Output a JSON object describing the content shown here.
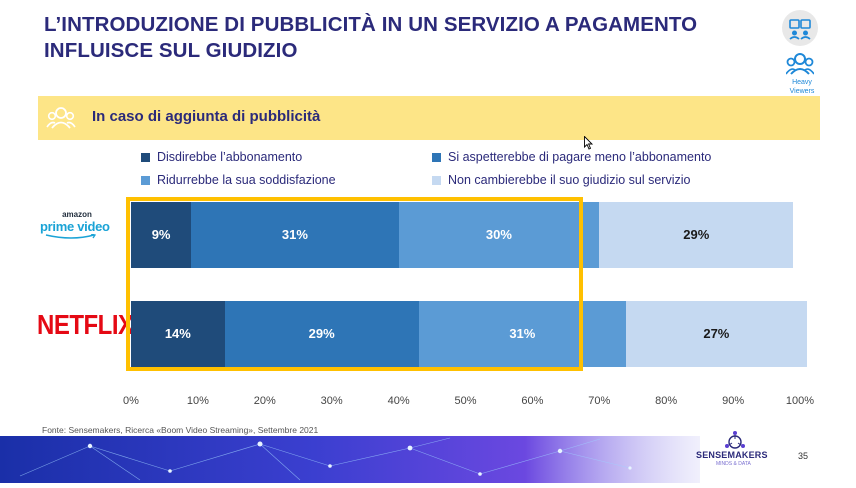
{
  "slide": {
    "title_line1": "L’INTRODUZIONE DI PUBBLICITÀ IN UN SERVIZIO A PAGAMENTO",
    "title_line2": "INFLUISCE SUL GIUDIZIO",
    "band_text": "In caso di aggiunta di pubblicità",
    "heavy_viewers_line1": "Heavy",
    "heavy_viewers_line2": "Viewers",
    "source": "Fonte: Sensemakers, Ricerca «Boom Video Streaming», Settembre 2021",
    "page_number": "35",
    "brand_name": "SENSEMAKERS",
    "brand_tagline": "MINDS & DATA",
    "prime_small": "amazon",
    "prime_big": "prime video",
    "netflix_logo": "NETFLIX"
  },
  "chart_data": {
    "type": "bar",
    "orientation": "horizontal",
    "stacked": true,
    "categories": [
      "Amazon Prime Video",
      "Netflix"
    ],
    "series": [
      {
        "name": "Disdirebbe l’abbonamento",
        "values": [
          9,
          14
        ],
        "labels": [
          "9%",
          "14%"
        ],
        "color": "#1f4b7a",
        "text_color": "#ffffff"
      },
      {
        "name": "Si aspetterebbe di pagare meno l’abbonamento",
        "values": [
          31,
          29
        ],
        "labels": [
          "31%",
          "29%"
        ],
        "color": "#2e75b6",
        "text_color": "#ffffff"
      },
      {
        "name": "Ridurrebbe la sua soddisfazione",
        "values": [
          30,
          31
        ],
        "labels": [
          "30%",
          "31%"
        ],
        "color": "#5b9bd5",
        "text_color": "#ffffff"
      },
      {
        "name": "Non cambierebbe il suo giudizio sul servizio",
        "values": [
          29,
          27
        ],
        "labels": [
          "29%",
          "27%"
        ],
        "color": "#c5d9f1",
        "text_color": "#1a1a1a"
      }
    ],
    "xlim": [
      0,
      100
    ],
    "ticks": [
      "0%",
      "10%",
      "20%",
      "30%",
      "40%",
      "50%",
      "60%",
      "70%",
      "80%",
      "90%",
      "100%"
    ],
    "highlight_range": [
      0,
      72
    ],
    "highlight_color": "#ffc000",
    "legend_position": "top"
  }
}
